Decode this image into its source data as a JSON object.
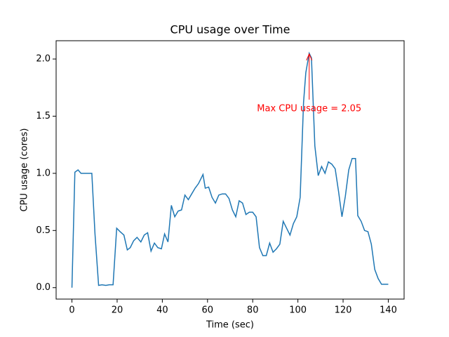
{
  "chart_data": {
    "type": "line",
    "title": "CPU usage over Time",
    "x_label": "Time (sec)",
    "y_label": "CPU usage (cores)",
    "x": [
      0,
      1.3,
      2.7,
      4,
      5.4,
      6.8,
      8.8,
      10.2,
      11.8,
      13.3,
      15,
      16.5,
      18.2,
      19.8,
      21.3,
      23,
      24.5,
      25.8,
      27.3,
      28.8,
      30.5,
      32,
      33.5,
      35,
      36.5,
      38,
      39.6,
      41,
      42.5,
      44,
      45.5,
      47,
      48.5,
      50,
      51.5,
      53,
      54.5,
      56,
      58,
      59,
      60.5,
      62,
      63.5,
      65,
      66.5,
      68,
      69.5,
      71,
      72.5,
      74,
      75.5,
      77,
      78.5,
      80,
      81.5,
      83,
      84.5,
      86,
      87.5,
      89,
      90.5,
      92,
      93.5,
      95,
      96.5,
      98,
      99.5,
      101,
      102.5,
      103.5,
      105,
      106,
      107.5,
      109,
      110.5,
      112,
      113.5,
      115,
      116.5,
      118,
      119.5,
      121,
      122.5,
      124,
      125.5,
      126.5,
      128,
      129.5,
      131,
      132.5,
      134,
      135.5,
      137,
      139,
      140
    ],
    "series": [
      {
        "name": "CPU usage",
        "color": "#1f77b4",
        "values": [
          0.0,
          1.01,
          1.03,
          1.0,
          1.0,
          1.0,
          1.0,
          0.47,
          0.02,
          0.025,
          0.02,
          0.025,
          0.025,
          0.52,
          0.49,
          0.46,
          0.33,
          0.35,
          0.41,
          0.44,
          0.4,
          0.46,
          0.48,
          0.32,
          0.39,
          0.35,
          0.34,
          0.47,
          0.4,
          0.72,
          0.62,
          0.67,
          0.68,
          0.81,
          0.77,
          0.82,
          0.87,
          0.91,
          0.99,
          0.87,
          0.88,
          0.79,
          0.74,
          0.81,
          0.82,
          0.82,
          0.78,
          0.68,
          0.62,
          0.76,
          0.74,
          0.64,
          0.66,
          0.66,
          0.62,
          0.35,
          0.28,
          0.28,
          0.39,
          0.31,
          0.34,
          0.38,
          0.58,
          0.52,
          0.46,
          0.56,
          0.62,
          0.79,
          1.62,
          1.88,
          2.05,
          2.01,
          1.24,
          0.98,
          1.06,
          1.0,
          1.1,
          1.08,
          1.04,
          0.84,
          0.62,
          0.8,
          1.03,
          1.13,
          1.13,
          0.63,
          0.58,
          0.5,
          0.49,
          0.38,
          0.16,
          0.08,
          0.03,
          0.03,
          0.03
        ]
      }
    ],
    "xlim": [
      -7,
      147
    ],
    "ylim": [
      -0.1,
      2.16
    ],
    "xticks": [
      0,
      20,
      40,
      60,
      80,
      100,
      120,
      140
    ],
    "yticks": [
      {
        "value": 0,
        "label": "0.0"
      },
      0.5,
      {
        "value": 1,
        "label": "1.0"
      },
      1.5,
      {
        "value": 2,
        "label": "2.0"
      }
    ],
    "annotation": {
      "text": "Max CPU usage = 2.05",
      "x": 105,
      "y": 2.05,
      "color": "#ff0000"
    }
  }
}
